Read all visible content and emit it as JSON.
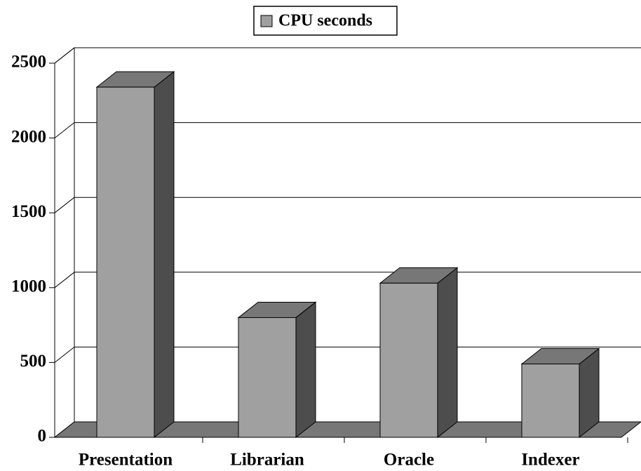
{
  "chart_data": {
    "type": "bar3d",
    "categories": [
      "Presentation",
      "Librarian",
      "Oracle",
      "Indexer"
    ],
    "series": [
      {
        "name": "CPU seconds",
        "color": "#a0a0a0",
        "values": [
          2340,
          800,
          1030,
          490
        ]
      }
    ],
    "ylim": [
      0,
      2500
    ],
    "yticks": [
      0,
      500,
      1000,
      1500,
      2000,
      2500
    ],
    "grid": true,
    "legend": "top"
  }
}
